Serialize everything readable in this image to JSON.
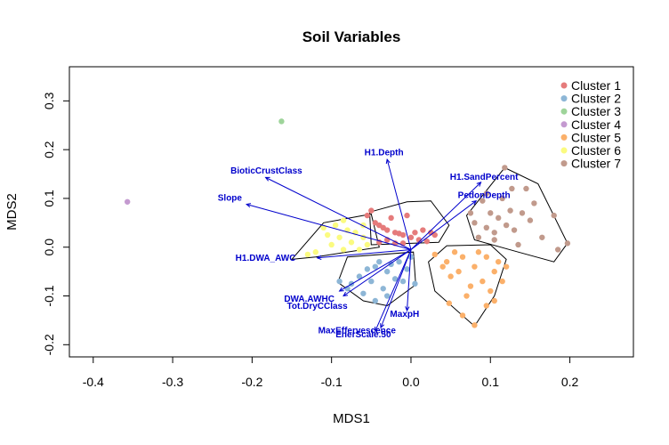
{
  "chart_data": {
    "type": "scatter",
    "title": "Soil Variables",
    "xlabel": "MDS1",
    "ylabel": "MDS2",
    "xlim": [
      -0.43,
      0.28
    ],
    "ylim": [
      -0.225,
      0.37
    ],
    "x_ticks": [
      -0.4,
      -0.3,
      -0.2,
      -0.1,
      0.0,
      0.1,
      0.2
    ],
    "x_tick_labels": [
      "-0.4",
      "-0.3",
      "-0.2",
      "-0.1",
      "0.0",
      "0.1",
      "0.2"
    ],
    "y_ticks": [
      -0.2,
      -0.1,
      0.0,
      0.1,
      0.2,
      0.3
    ],
    "y_tick_labels": [
      "-0.2",
      "-0.1",
      "0.0",
      "0.1",
      "0.2",
      "0.3"
    ],
    "grid": false,
    "legend_position": "top-right",
    "centroid": [
      0.0,
      -0.005
    ],
    "vector_color": "#0000cc",
    "hull_color": "#000000",
    "series": [
      {
        "name": "Cluster 1",
        "color": "#e57b7b",
        "points": [
          [
            -0.05,
            0.075
          ],
          [
            -0.045,
            0.05
          ],
          [
            -0.04,
            0.045
          ],
          [
            -0.035,
            0.04
          ],
          [
            -0.03,
            0.035
          ],
          [
            -0.025,
            0.06
          ],
          [
            -0.02,
            0.03
          ],
          [
            -0.015,
            0.028
          ],
          [
            -0.01,
            0.025
          ],
          [
            -0.005,
            0.065
          ],
          [
            0.0,
            0.02
          ],
          [
            0.005,
            0.03
          ],
          [
            0.01,
            0.015
          ],
          [
            0.015,
            0.035
          ],
          [
            0.02,
            0.012
          ],
          [
            0.025,
            0.03
          ],
          [
            -0.04,
            0.01
          ],
          [
            -0.03,
            0.015
          ],
          [
            -0.02,
            0.008
          ],
          [
            -0.01,
            0.008
          ],
          [
            -0.055,
            0.065
          ],
          [
            0.03,
            0.025
          ]
        ],
        "hull": [
          [
            -0.052,
            0.072
          ],
          [
            -0.005,
            0.093
          ],
          [
            0.025,
            0.095
          ],
          [
            0.048,
            0.045
          ],
          [
            0.035,
            0.01
          ],
          [
            -0.05,
            0.005
          ]
        ]
      },
      {
        "name": "Cluster 2",
        "color": "#8db6d6",
        "points": [
          [
            -0.09,
            -0.07
          ],
          [
            -0.08,
            -0.085
          ],
          [
            -0.075,
            -0.075
          ],
          [
            -0.065,
            -0.06
          ],
          [
            -0.055,
            -0.045
          ],
          [
            -0.05,
            -0.07
          ],
          [
            -0.045,
            -0.04
          ],
          [
            -0.04,
            -0.03
          ],
          [
            -0.035,
            -0.085
          ],
          [
            -0.03,
            -0.05
          ],
          [
            -0.025,
            -0.035
          ],
          [
            -0.02,
            -0.065
          ],
          [
            -0.015,
            -0.03
          ],
          [
            -0.01,
            -0.07
          ],
          [
            -0.005,
            -0.045
          ],
          [
            0.0,
            -0.02
          ],
          [
            0.005,
            -0.075
          ],
          [
            -0.06,
            -0.095
          ],
          [
            -0.045,
            -0.11
          ],
          [
            -0.03,
            -0.1
          ]
        ],
        "hull": [
          [
            -0.092,
            -0.072
          ],
          [
            -0.06,
            -0.11
          ],
          [
            -0.03,
            -0.12
          ],
          [
            0.006,
            -0.077
          ],
          [
            0.003,
            -0.01
          ],
          [
            -0.08,
            -0.02
          ]
        ]
      },
      {
        "name": "Cluster 3",
        "color": "#9ed49a",
        "points": [
          [
            -0.163,
            0.258
          ]
        ],
        "hull": []
      },
      {
        "name": "Cluster 4",
        "color": "#c49ad0",
        "points": [
          [
            -0.357,
            0.093
          ]
        ],
        "hull": []
      },
      {
        "name": "Cluster 5",
        "color": "#fbb06a",
        "points": [
          [
            0.03,
            -0.015
          ],
          [
            0.04,
            -0.04
          ],
          [
            0.045,
            -0.03
          ],
          [
            0.05,
            -0.06
          ],
          [
            0.055,
            -0.01
          ],
          [
            0.06,
            -0.05
          ],
          [
            0.065,
            -0.02
          ],
          [
            0.07,
            -0.1
          ],
          [
            0.075,
            -0.08
          ],
          [
            0.08,
            -0.04
          ],
          [
            0.085,
            -0.01
          ],
          [
            0.09,
            -0.07
          ],
          [
            0.095,
            -0.02
          ],
          [
            0.1,
            -0.09
          ],
          [
            0.105,
            -0.05
          ],
          [
            0.11,
            -0.03
          ],
          [
            0.115,
            -0.07
          ],
          [
            0.12,
            -0.04
          ],
          [
            0.048,
            -0.115
          ],
          [
            0.065,
            -0.14
          ],
          [
            0.08,
            -0.16
          ],
          [
            0.095,
            -0.12
          ],
          [
            0.105,
            -0.11
          ]
        ],
        "hull": [
          [
            0.022,
            -0.03
          ],
          [
            0.045,
            0.003
          ],
          [
            0.1,
            0.005
          ],
          [
            0.12,
            -0.025
          ],
          [
            0.105,
            -0.1
          ],
          [
            0.08,
            -0.162
          ],
          [
            0.03,
            -0.09
          ]
        ]
      },
      {
        "name": "Cluster 6",
        "color": "#fbfb80",
        "points": [
          [
            -0.105,
            0.025
          ],
          [
            -0.1,
            0.005
          ],
          [
            -0.095,
            0.045
          ],
          [
            -0.09,
            0.02
          ],
          [
            -0.085,
            -0.005
          ],
          [
            -0.08,
            0.035
          ],
          [
            -0.075,
            0.01
          ],
          [
            -0.07,
            0.03
          ],
          [
            -0.065,
            -0.005
          ],
          [
            -0.06,
            0.02
          ],
          [
            -0.055,
            0.005
          ],
          [
            -0.12,
            -0.01
          ],
          [
            -0.13,
            -0.015
          ],
          [
            -0.11,
            0.04
          ],
          [
            -0.085,
            0.055
          ],
          [
            -0.06,
            0.045
          ]
        ],
        "hull": [
          [
            -0.15,
            -0.025
          ],
          [
            -0.11,
            0.05
          ],
          [
            -0.05,
            0.068
          ],
          [
            -0.04,
            0.0
          ],
          [
            -0.12,
            -0.02
          ]
        ]
      },
      {
        "name": "Cluster 7",
        "color": "#c19a8c",
        "points": [
          [
            0.075,
            0.07
          ],
          [
            0.08,
            0.05
          ],
          [
            0.085,
            0.02
          ],
          [
            0.09,
            0.095
          ],
          [
            0.095,
            0.04
          ],
          [
            0.1,
            0.07
          ],
          [
            0.105,
            0.03
          ],
          [
            0.11,
            0.06
          ],
          [
            0.115,
            0.1
          ],
          [
            0.12,
            0.045
          ],
          [
            0.125,
            0.075
          ],
          [
            0.13,
            0.035
          ],
          [
            0.135,
            0.005
          ],
          [
            0.14,
            0.07
          ],
          [
            0.145,
            0.12
          ],
          [
            0.15,
            0.055
          ],
          [
            0.155,
            0.09
          ],
          [
            0.165,
            0.02
          ],
          [
            0.18,
            0.065
          ],
          [
            0.185,
            -0.005
          ],
          [
            0.197,
            0.008
          ],
          [
            0.118,
            0.163
          ],
          [
            0.127,
            0.12
          ],
          [
            0.095,
            0.11
          ],
          [
            0.105,
            0.015
          ]
        ],
        "hull": [
          [
            0.07,
            0.065
          ],
          [
            0.118,
            0.163
          ],
          [
            0.16,
            0.13
          ],
          [
            0.197,
            0.008
          ],
          [
            0.18,
            -0.03
          ],
          [
            0.135,
            -0.01
          ],
          [
            0.08,
            0.015
          ]
        ]
      }
    ],
    "vectors": [
      {
        "label": "H1.Depth",
        "x": -0.03,
        "y": 0.18,
        "label_x": -0.034,
        "label_y": 0.188
      },
      {
        "label": "BioticCrustClass",
        "x": -0.183,
        "y": 0.143,
        "label_x": -0.182,
        "label_y": 0.151
      },
      {
        "label": "Slope",
        "x": -0.207,
        "y": 0.088,
        "label_x": -0.228,
        "label_y": 0.095
      },
      {
        "label": "H1.SandPercent",
        "x": 0.088,
        "y": 0.133,
        "label_x": 0.092,
        "label_y": 0.138
      },
      {
        "label": "PedonDepth",
        "x": 0.082,
        "y": 0.095,
        "label_x": 0.092,
        "label_y": 0.101
      },
      {
        "label": "H1.DWA_AWC",
        "x": -0.118,
        "y": -0.022,
        "label_x": -0.183,
        "label_y": -0.028
      },
      {
        "label": "DWA.AWHC",
        "x": -0.09,
        "y": -0.09,
        "label_x": -0.128,
        "label_y": -0.112
      },
      {
        "label": "Tot.DryCClass",
        "x": -0.085,
        "y": -0.1,
        "label_x": -0.118,
        "label_y": -0.126
      },
      {
        "label": "MaxpH",
        "x": -0.005,
        "y": -0.13,
        "label_x": -0.008,
        "label_y": -0.143
      },
      {
        "label": "MaxEffervescence",
        "x": -0.045,
        "y": -0.172,
        "label_x": -0.068,
        "label_y": -0.177
      },
      {
        "label": "EnerScale.50",
        "x": -0.038,
        "y": -0.165,
        "label_x": -0.06,
        "label_y": -0.185
      }
    ]
  }
}
